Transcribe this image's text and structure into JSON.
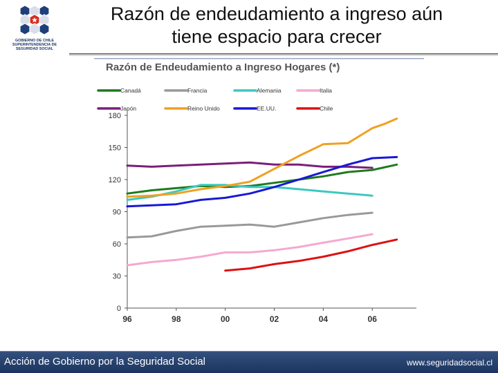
{
  "header": {
    "title_line1": "Razón de endeudamiento a ingreso aún",
    "title_line2": "tiene espacio para crecer",
    "logo_lines": [
      "GOBIERNO DE CHILE",
      "SUPERINTENDENCIA DE",
      "SEGURIDAD SOCIAL"
    ]
  },
  "footer": {
    "left_text": "Acción de Gobierno por la Seguridad Social",
    "right_text": "www.seguridadsocial.cl"
  },
  "colors": {
    "logo_blue": "#1f3f7a",
    "logo_red": "#d52b1e",
    "footer_bg": "#253f6b"
  },
  "chart_data": {
    "type": "line",
    "title": "Razón de Endeudamiento a Ingreso Hogares (*)",
    "xlabel": "",
    "ylabel": "",
    "xlim": [
      1996,
      2007.8
    ],
    "ylim": [
      0,
      180
    ],
    "yticks": [
      0,
      30,
      60,
      90,
      120,
      150,
      180
    ],
    "xticks": [
      {
        "value": 1996,
        "label": "96"
      },
      {
        "value": 1998,
        "label": "98"
      },
      {
        "value": 2000,
        "label": "00"
      },
      {
        "value": 2002,
        "label": "02"
      },
      {
        "value": 2004,
        "label": "04"
      },
      {
        "value": 2006,
        "label": "06"
      }
    ],
    "legend_position": "top",
    "series": [
      {
        "name": "Canadá",
        "color": "#1e7a1e",
        "x": [
          1996,
          1997,
          1998,
          1999,
          2000,
          2001,
          2002,
          2003,
          2004,
          2005,
          2006,
          2007
        ],
        "values": [
          107,
          110,
          112,
          114,
          113,
          114,
          117,
          120,
          123,
          127,
          129,
          134
        ]
      },
      {
        "name": "Francia",
        "color": "#999999",
        "x": [
          1996,
          1997,
          1998,
          1999,
          2000,
          2001,
          2002,
          2003,
          2004,
          2005,
          2006
        ],
        "values": [
          66,
          67,
          72,
          76,
          77,
          78,
          76,
          80,
          84,
          87,
          89
        ]
      },
      {
        "name": "Alemania",
        "color": "#3cc8c0",
        "x": [
          1996,
          1997,
          1998,
          1999,
          2000,
          2001,
          2002,
          2003,
          2004,
          2005,
          2006
        ],
        "values": [
          101,
          104,
          109,
          115,
          115,
          113,
          113,
          111,
          109,
          107,
          105
        ]
      },
      {
        "name": "Italia",
        "color": "#f5a8d0",
        "x": [
          1996,
          1997,
          1998,
          1999,
          2000,
          2001,
          2002,
          2003,
          2004,
          2005,
          2006
        ],
        "values": [
          40,
          43,
          45,
          48,
          52,
          52,
          54,
          57,
          61,
          65,
          69
        ]
      },
      {
        "name": "Japón",
        "color": "#7a1e7a",
        "x": [
          1996,
          1997,
          1998,
          1999,
          2000,
          2001,
          2002,
          2003,
          2004,
          2005,
          2006
        ],
        "values": [
          133,
          132,
          133,
          134,
          135,
          136,
          134,
          134,
          132,
          132,
          131
        ]
      },
      {
        "name": "Reino Unido",
        "color": "#f0a020",
        "x": [
          1996,
          1997,
          1998,
          1999,
          2000,
          2001,
          2002,
          2003,
          2004,
          2005,
          2006,
          2006.5,
          2007
        ],
        "values": [
          104,
          105,
          107,
          111,
          114,
          118,
          130,
          142,
          153,
          154,
          168,
          172,
          177
        ]
      },
      {
        "name": "EE.UU.",
        "color": "#1818d8",
        "x": [
          1996,
          1997,
          1998,
          1999,
          2000,
          2001,
          2002,
          2003,
          2004,
          2005,
          2006,
          2007
        ],
        "values": [
          95,
          96,
          97,
          101,
          103,
          107,
          113,
          120,
          127,
          134,
          140,
          141
        ]
      },
      {
        "name": "Chile",
        "color": "#dd1111",
        "x": [
          2000,
          2001,
          2002,
          2003,
          2004,
          2005,
          2006,
          2007
        ],
        "values": [
          35,
          37,
          41,
          44,
          48,
          53,
          59,
          64
        ]
      }
    ]
  }
}
